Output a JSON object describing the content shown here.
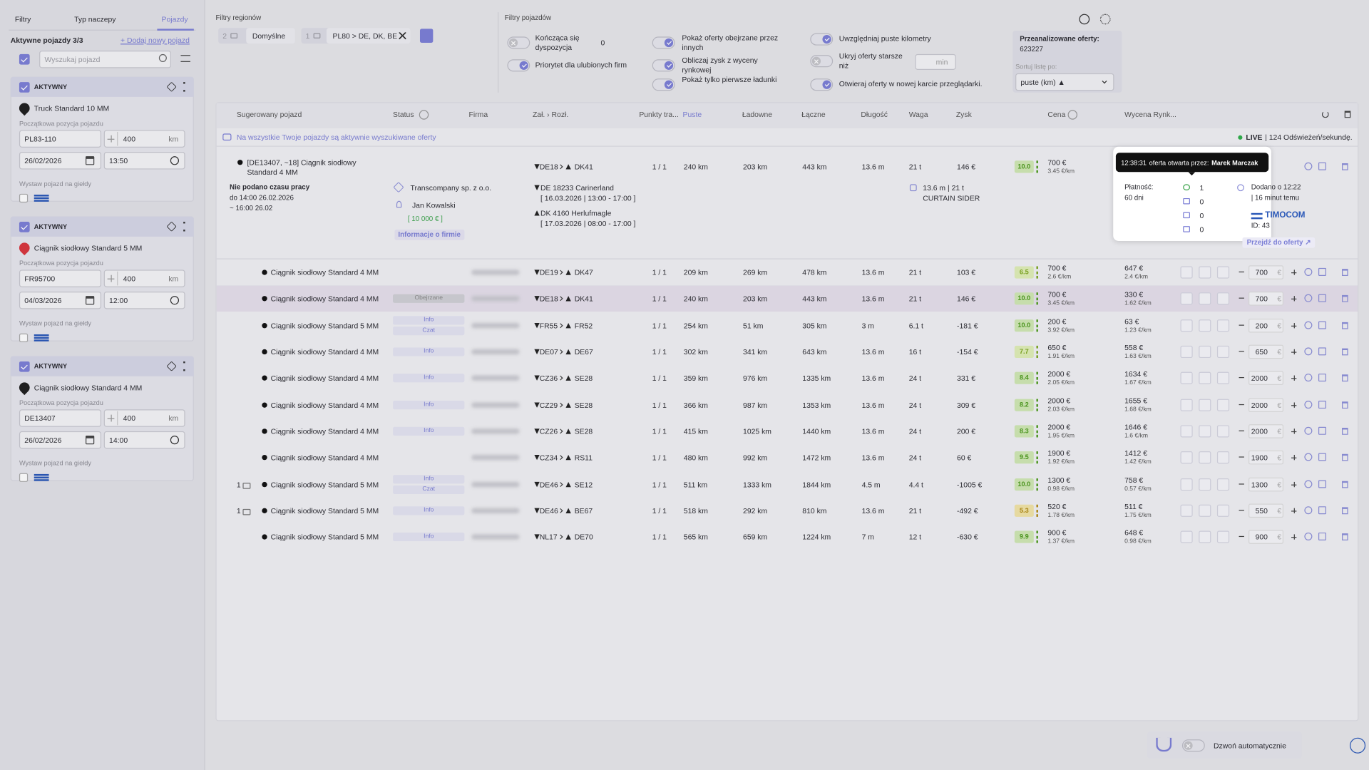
{
  "sidebar": {
    "tabs": [
      "Filtry",
      "Typ naczepy",
      "Pojazdy"
    ],
    "active_tab": 2,
    "active_vehicles": "Aktywne pojazdy 3/3",
    "add_vehicle": "+ Dodaj nowy pojazd",
    "search_placeholder": "Wyszukaj pojazd",
    "vehicles": [
      {
        "status": "AKTYWNY",
        "name": "Truck Standard 10 MM",
        "pin_color": "#1f1f1f",
        "position_label": "Początkowa pozycja pojazdu",
        "plate": "PL83-110",
        "radius": "400",
        "unit": "km",
        "date": "26/02/2026",
        "time": "13:50",
        "exchange_label": "Wystaw pojazd na giełdy"
      },
      {
        "status": "AKTYWNY",
        "name": "Ciągnik siodłowy Standard 5 MM",
        "pin_color": "#d9363e",
        "position_label": "Początkowa pozycja pojazdu",
        "plate": "FR95700",
        "radius": "400",
        "unit": "km",
        "date": "04/03/2026",
        "time": "12:00",
        "exchange_label": "Wystaw pojazd na giełdy"
      },
      {
        "status": "AKTYWNY",
        "name": "Ciągnik siodłowy Standard 4 MM",
        "pin_color": "#1f1f1f",
        "position_label": "Początkowa pozycja pojazdu",
        "plate": "DE13407",
        "radius": "400",
        "unit": "km",
        "date": "26/02/2026",
        "time": "14:00",
        "exchange_label": "Wystaw pojazd na giełdy"
      }
    ]
  },
  "region_filters": {
    "title": "Filtry regionów",
    "presets": [
      {
        "count": "2",
        "name": "Domyślne"
      },
      {
        "count": "1",
        "name": "PL80 > DE, DK, BE"
      }
    ]
  },
  "vehicle_filters": {
    "title": "Filtry pojazdów",
    "columns": [
      [
        {
          "label": "Kończąca się dyspozycja",
          "checked": false,
          "value": "0"
        },
        {
          "label": "Priorytet dla ulubionych firm",
          "checked": true
        }
      ],
      [
        {
          "label": "Pokaż oferty obejrzane przez innych",
          "checked": true
        },
        {
          "label": "Obliczaj zysk z wyceny rynkowej",
          "checked": true
        },
        {
          "label": "Pokaż tylko pierwsze ładunki",
          "checked": true
        }
      ],
      [
        {
          "label": "Uwzględniaj puste kilometry",
          "checked": true
        },
        {
          "label": "Ukryj oferty starsze niż",
          "checked": false,
          "unit": "min"
        },
        {
          "label": "Otwieraj oferty w nowej karcie przeglądarki.",
          "checked": true
        }
      ]
    ]
  },
  "analysis": {
    "label": "Przeanalizowane oferty:",
    "value": "623227",
    "sort_label": "Sortuj listę po:",
    "sort_value": "puste (km) ▲"
  },
  "table": {
    "columns": [
      "Sugerowany pojazd",
      "Status",
      "Firma",
      "Zał. › Rozł.",
      "Punkty tra...",
      "Puste",
      "Ładowne",
      "Łączne",
      "Długość",
      "Waga",
      "Zysk",
      "Cena",
      "Wycena Rynk..."
    ],
    "sorted_column": 5,
    "notice": "Na wszystkie Twoje pojazdy są aktywnie wyszukiwane oferty",
    "live": "LIVE",
    "refresh": "| 124 Odświeżeń/sekundę.",
    "bid_currency": "€",
    "expanded": {
      "vehicle": "[DE13407, ~18] Ciągnik siodłowy Standard 4 MM",
      "work_time": "Nie podano czasu pracy",
      "work_until": "do 14:00 26.02.2026",
      "work_eta": "~ 16:00 26.02",
      "company": "Transcompany sp. z o.o.",
      "contact": "Jan Kowalski",
      "credit": "[ 10 000 € ]",
      "company_info": "Informacje o firmie",
      "from": "DE18",
      "to": "DK41",
      "load_place": "DE 18233 Carinerland",
      "load_window": "[ 16.03.2026 | 13:00 - 17:00 ]",
      "unload_place": "DK 4160 Herlufmagle",
      "unload_window": "[ 17.03.2026 | 08:00 - 17:00 ]",
      "points": "1 / 1",
      "empty": "240 km",
      "loaded": "203 km",
      "total": "443 km",
      "length": "13.6 m",
      "weight": "21 t",
      "profit": "146 €",
      "rating": "10.0",
      "price": "700 €",
      "price_per_km": "3.45 €/km",
      "cargo": "13.6 m | 21 t",
      "trailer": "CURTAIN SIDER"
    },
    "rows": [
      {
        "vehicle": "Ciągnik siodłowy Standard 4 MM",
        "tags": [],
        "from": "DE19",
        "to": "DK47",
        "points": "1 / 1",
        "empty": "209 km",
        "loaded": "269 km",
        "total": "478 km",
        "length": "13.6 m",
        "weight": "21 t",
        "profit": "103 €",
        "rating": "6.5",
        "price": "700 €",
        "price_per_km": "2.6 €/km",
        "market": "647 €",
        "market_per_km": "2.4 €/km",
        "bid": "700"
      },
      {
        "vehicle": "Ciągnik siodłowy Standard 4 MM",
        "tags": [
          "Obejrzane"
        ],
        "from": "DE18",
        "to": "DK41",
        "points": "1 / 1",
        "empty": "240 km",
        "loaded": "203 km",
        "total": "443 km",
        "length": "13.6 m",
        "weight": "21 t",
        "profit": "146 €",
        "rating": "10.0",
        "price": "700 €",
        "price_per_km": "3.45 €/km",
        "market": "330 €",
        "market_per_km": "1.62 €/km",
        "bid": "700"
      },
      {
        "vehicle": "Ciągnik siodłowy Standard 5 MM",
        "tags": [
          "Info",
          "Czat"
        ],
        "from": "FR55",
        "to": "FR52",
        "points": "1 / 1",
        "empty": "254 km",
        "loaded": "51 km",
        "total": "305 km",
        "length": "3 m",
        "weight": "6.1 t",
        "profit": "-181 €",
        "rating": "10.0",
        "price": "200 €",
        "price_per_km": "3.92 €/km",
        "market": "63 €",
        "market_per_km": "1.23 €/km",
        "bid": "200"
      },
      {
        "vehicle": "Ciągnik siodłowy Standard 4 MM",
        "tags": [
          "Info"
        ],
        "from": "DE07",
        "to": "DE67",
        "points": "1 / 1",
        "empty": "302 km",
        "loaded": "341 km",
        "total": "643 km",
        "length": "13.6 m",
        "weight": "16 t",
        "profit": "-154 €",
        "rating": "7.7",
        "price": "650 €",
        "price_per_km": "1.91 €/km",
        "market": "558 €",
        "market_per_km": "1.63 €/km",
        "bid": "650"
      },
      {
        "vehicle": "Ciągnik siodłowy Standard 4 MM",
        "tags": [
          "Info"
        ],
        "from": "CZ36",
        "to": "SE28",
        "points": "1 / 1",
        "empty": "359 km",
        "loaded": "976 km",
        "total": "1335 km",
        "length": "13.6 m",
        "weight": "24 t",
        "profit": "331 €",
        "rating": "8.4",
        "price": "2000 €",
        "price_per_km": "2.05 €/km",
        "market": "1634 €",
        "market_per_km": "1.67 €/km",
        "bid": "2000"
      },
      {
        "vehicle": "Ciągnik siodłowy Standard 4 MM",
        "tags": [
          "Info"
        ],
        "from": "CZ29",
        "to": "SE28",
        "points": "1 / 1",
        "empty": "366 km",
        "loaded": "987 km",
        "total": "1353 km",
        "length": "13.6 m",
        "weight": "24 t",
        "profit": "309 €",
        "rating": "8.2",
        "price": "2000 €",
        "price_per_km": "2.03 €/km",
        "market": "1655 €",
        "market_per_km": "1.68 €/km",
        "bid": "2000"
      },
      {
        "vehicle": "Ciągnik siodłowy Standard 4 MM",
        "tags": [
          "Info"
        ],
        "from": "CZ26",
        "to": "SE28",
        "points": "1 / 1",
        "empty": "415 km",
        "loaded": "1025 km",
        "total": "1440 km",
        "length": "13.6 m",
        "weight": "24 t",
        "profit": "200 €",
        "rating": "8.3",
        "price": "2000 €",
        "price_per_km": "1.95 €/km",
        "market": "1646 €",
        "market_per_km": "1.6 €/km",
        "bid": "2000"
      },
      {
        "vehicle": "Ciągnik siodłowy Standard 4 MM",
        "tags": [],
        "from": "CZ34",
        "to": "RS11",
        "points": "1 / 1",
        "empty": "480 km",
        "loaded": "992 km",
        "total": "1472 km",
        "length": "13.6 m",
        "weight": "24 t",
        "profit": "60 €",
        "rating": "9.5",
        "price": "1900 €",
        "price_per_km": "1.92 €/km",
        "market": "1412 €",
        "market_per_km": "1.42 €/km",
        "bid": "1900"
      },
      {
        "count": "1",
        "vehicle": "Ciągnik siodłowy Standard 5 MM",
        "tags": [
          "Info",
          "Czat"
        ],
        "from": "DE46",
        "to": "SE12",
        "points": "1 / 1",
        "empty": "511 km",
        "loaded": "1333 km",
        "total": "1844 km",
        "length": "4.5 m",
        "weight": "4.4 t",
        "profit": "-1005 €",
        "rating": "10.0",
        "price": "1300 €",
        "price_per_km": "0.98 €/km",
        "market": "758 €",
        "market_per_km": "0.57 €/km",
        "bid": "1300"
      },
      {
        "count": "1",
        "vehicle": "Ciągnik siodłowy Standard 5 MM",
        "tags": [
          "Info"
        ],
        "from": "DE46",
        "to": "BE67",
        "points": "1 / 1",
        "empty": "518 km",
        "loaded": "292 km",
        "total": "810 km",
        "length": "13.6 m",
        "weight": "21 t",
        "profit": "-492 €",
        "rating": "5.3",
        "price": "520 €",
        "price_per_km": "1.78 €/km",
        "market": "511 €",
        "market_per_km": "1.75 €/km",
        "bid": "550"
      },
      {
        "vehicle": "Ciągnik siodłowy Standard 5 MM",
        "tags": [
          "Info"
        ],
        "from": "NL17",
        "to": "DE70",
        "points": "1 / 1",
        "empty": "565 km",
        "loaded": "659 km",
        "total": "1224 km",
        "length": "7 m",
        "weight": "12 t",
        "profit": "-630 €",
        "rating": "9.9",
        "price": "900 €",
        "price_per_km": "1.37 €/km",
        "market": "648 €",
        "market_per_km": "0.98 €/km",
        "bid": "900"
      }
    ]
  },
  "offer_popup": {
    "opened_at": "12:38:31",
    "opened_text": "oferta otwarta przez:",
    "opened_by": "Marek Marczak",
    "payment_label": "Płatność:",
    "payment_value": "60 dni",
    "stats": [
      "1",
      "0",
      "0",
      "0"
    ],
    "added": "Dodano o 12:22",
    "added_ago": "| 16 minut temu",
    "exchange": "TIMOCOM",
    "offer_id": "ID: 43",
    "go_to_offer": "Przejdź do oferty ↗"
  },
  "footer": {
    "auto_call": "Dzwoń automatycznie"
  }
}
